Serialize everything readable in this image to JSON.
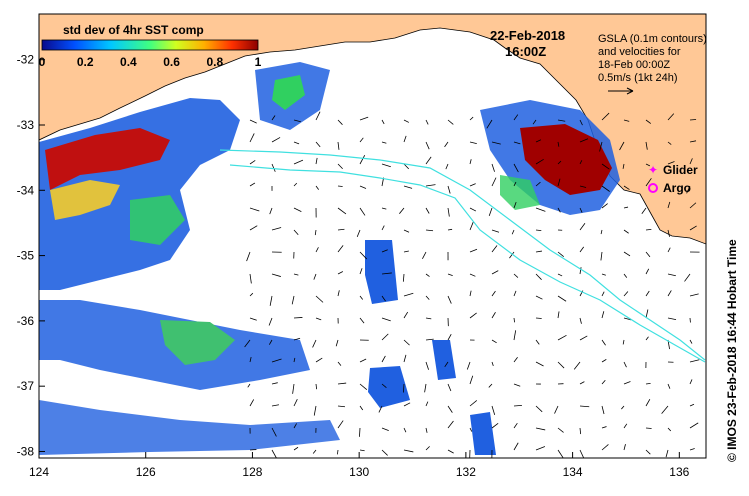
{
  "map": {
    "date": "22-Feb-2018",
    "time": "16:00Z",
    "colorbar": {
      "title": "std dev of 4hr SST comp",
      "ticks": [
        "0",
        "0.2",
        "0.4",
        "0.6",
        "0.8",
        "1"
      ],
      "colors": [
        "#0a0a8c",
        "#0050ff",
        "#00c8ff",
        "#40ff80",
        "#d0ff20",
        "#ffb000",
        "#ff3000",
        "#8c0000"
      ]
    },
    "gsla_note": [
      "GSLA (0.1m contours)",
      "and velocities for",
      "18-Feb 00:00Z",
      "0.5m/s (1kt 24h)"
    ],
    "legend": {
      "glider": "Glider",
      "argo": "Argo",
      "glider_color": "#ff00ff",
      "argo_color": "#ff00ff"
    },
    "credit": "©  IMOS 23-Feb-2018 16:44 Hobart Time",
    "x_ticks": [
      "124",
      "126",
      "128",
      "130",
      "132",
      "134",
      "136"
    ],
    "y_ticks": [
      "-32",
      "-33",
      "-34",
      "-35",
      "-36",
      "-37",
      "-38"
    ],
    "land_color": "#ffc896",
    "track_color": "#40e0e0"
  }
}
